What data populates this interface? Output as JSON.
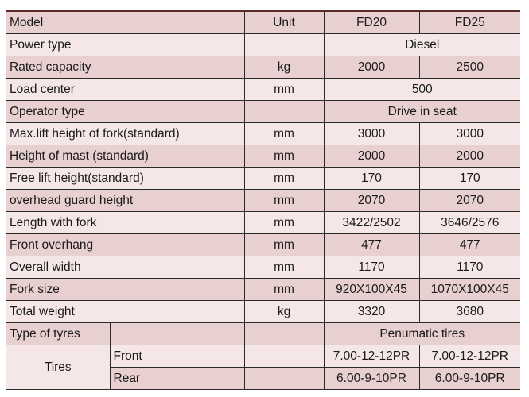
{
  "header": {
    "model": "Model",
    "unit": "Unit",
    "fd20": "FD20",
    "fd25": "FD25"
  },
  "rows": [
    {
      "label": "Power type",
      "unit": "",
      "merged": "Diesel"
    },
    {
      "label": "Rated capacity",
      "unit": "kg",
      "fd20": "2000",
      "fd25": "2500"
    },
    {
      "label": "Load center",
      "unit": "mm",
      "merged": "500"
    },
    {
      "label": "Operator type",
      "unit": "",
      "merged": "Drive in seat"
    },
    {
      "label": "Max.lift  height of fork(standard)",
      "unit": "mm",
      "fd20": "3000",
      "fd25": "3000"
    },
    {
      "label": "Height of mast (standard)",
      "unit": "mm",
      "fd20": "2000",
      "fd25": "2000"
    },
    {
      "label": "Free lift height(standard)",
      "unit": "mm",
      "fd20": "170",
      "fd25": "170"
    },
    {
      "label": " overhead guard height",
      "unit": "mm",
      "fd20": "2070",
      "fd25": "2070"
    },
    {
      "label": "Length with fork",
      "unit": "mm",
      "fd20": "3422/2502",
      "fd25": "3646/2576"
    },
    {
      "label": "Front overhang",
      "unit": "mm",
      "fd20": "477",
      "fd25": "477"
    },
    {
      "label": "Overall width",
      "unit": "mm",
      "fd20": "1170",
      "fd25": "1170"
    },
    {
      "label": "Fork size",
      "unit": "mm",
      "fd20": "920X100X45",
      "fd25": "1070X100X45"
    },
    {
      "label": "Total weight",
      "unit": "kg",
      "fd20": "3320",
      "fd25": "3680"
    }
  ],
  "tyres": {
    "label": "Type of tyres",
    "merged": "Penumatic tires"
  },
  "tires": {
    "label": "Tires",
    "front": {
      "label": "Front",
      "fd20": "7.00-12-12PR",
      "fd25": "7.00-12-12PR"
    },
    "rear": {
      "label": "Rear",
      "fd20": "6.00-9-10PR",
      "fd25": "6.00-9-10PR"
    }
  }
}
